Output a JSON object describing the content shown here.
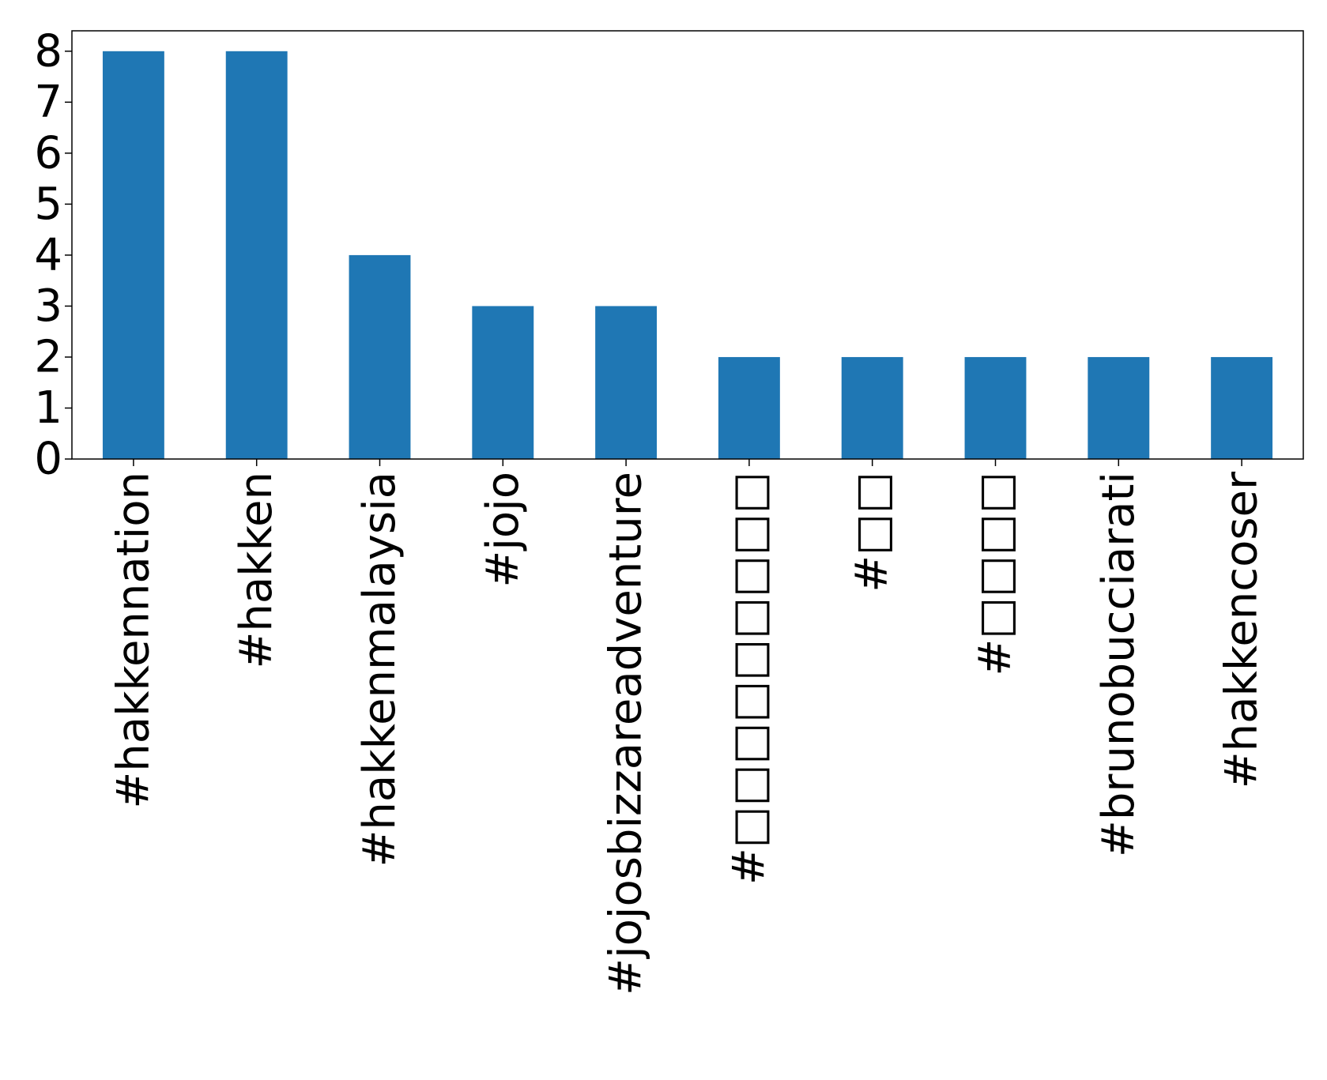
{
  "chart_data": {
    "type": "bar",
    "categories": [
      "#hakkennation",
      "#hakken",
      "#hakkenmalaysia",
      "#jojo",
      "#jojosbizzareadventure",
      "#□□□□□□□□□",
      "#□□",
      "#□□□□",
      "#brunobucciarati",
      "#hakkencoser"
    ],
    "values": [
      8,
      8,
      4,
      3,
      3,
      2,
      2,
      2,
      2,
      2
    ],
    "title": "",
    "xlabel": "",
    "ylabel": "",
    "ylim": [
      0,
      8.4
    ],
    "yticks": [
      0,
      1,
      2,
      3,
      4,
      5,
      6,
      7,
      8
    ],
    "grid": false,
    "legend": "none",
    "bar_color": "#1f77b4"
  }
}
